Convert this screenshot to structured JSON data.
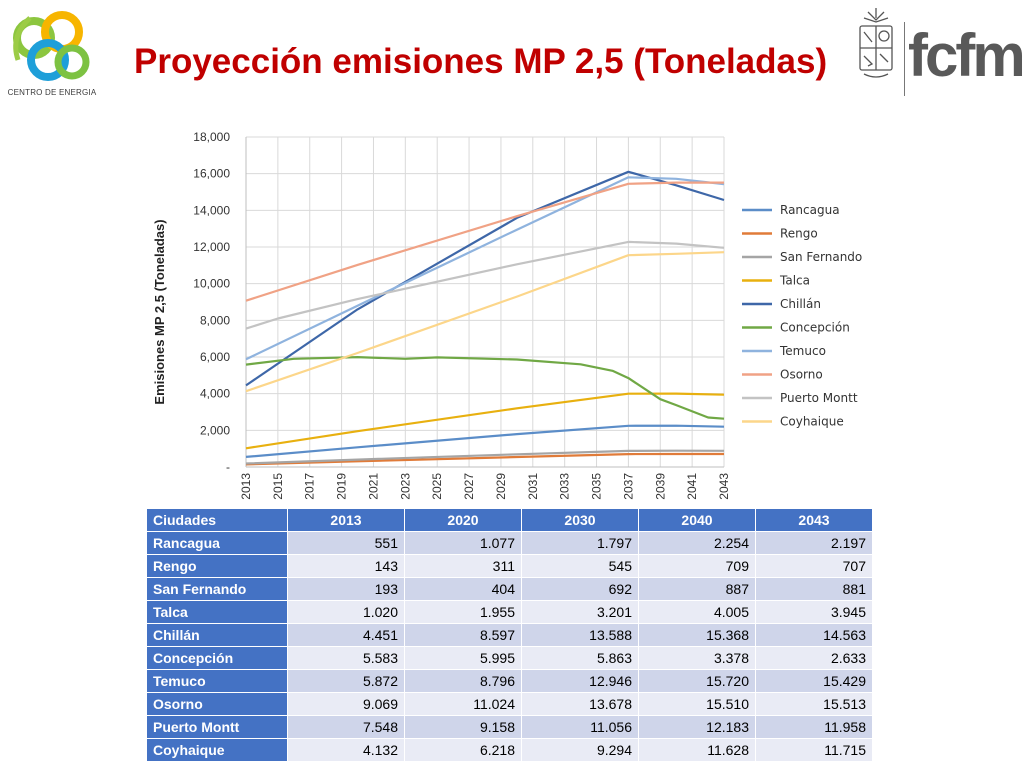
{
  "header": {
    "title": "Proyección emisiones MP 2,5 (Toneladas)",
    "left_logo_caption": "CENTRO DE ENERGIA",
    "right_logo_text": "fcfm"
  },
  "chart_data": {
    "type": "line",
    "title": "",
    "ylabel": "Emisiones MP 2,5 (Toneladas)",
    "xlabel": "",
    "ylim": [
      0,
      18000
    ],
    "grid": true,
    "legend_position": "right",
    "x_ticks": [
      "2013",
      "2015",
      "2017",
      "2019",
      "2021",
      "2023",
      "2025",
      "2027",
      "2029",
      "2031",
      "2033",
      "2035",
      "2037",
      "2039",
      "2041",
      "2043"
    ],
    "y_ticks": [
      {
        "value": 0,
        "label": "-"
      },
      {
        "value": 2000,
        "label": "2,000"
      },
      {
        "value": 4000,
        "label": "4,000"
      },
      {
        "value": 6000,
        "label": "6,000"
      },
      {
        "value": 8000,
        "label": "8,000"
      },
      {
        "value": 10000,
        "label": "10,000"
      },
      {
        "value": 12000,
        "label": "12,000"
      },
      {
        "value": 14000,
        "label": "14,000"
      },
      {
        "value": 16000,
        "label": "16,000"
      },
      {
        "value": 18000,
        "label": "18,000"
      }
    ],
    "series": [
      {
        "name": "Rancagua",
        "color": "#5b8dc8",
        "points": [
          [
            2013,
            551
          ],
          [
            2020,
            1077
          ],
          [
            2030,
            1797
          ],
          [
            2037,
            2250
          ],
          [
            2040,
            2254
          ],
          [
            2043,
            2197
          ]
        ]
      },
      {
        "name": "Rengo",
        "color": "#e07b39",
        "points": [
          [
            2013,
            143
          ],
          [
            2020,
            311
          ],
          [
            2030,
            545
          ],
          [
            2037,
            705
          ],
          [
            2040,
            709
          ],
          [
            2043,
            707
          ]
        ]
      },
      {
        "name": "San Fernando",
        "color": "#a5a5a5",
        "points": [
          [
            2013,
            193
          ],
          [
            2020,
            404
          ],
          [
            2030,
            692
          ],
          [
            2037,
            880
          ],
          [
            2040,
            887
          ],
          [
            2043,
            881
          ]
        ]
      },
      {
        "name": "Talca",
        "color": "#e8b00f",
        "points": [
          [
            2013,
            1020
          ],
          [
            2020,
            1955
          ],
          [
            2030,
            3201
          ],
          [
            2037,
            4000
          ],
          [
            2040,
            4005
          ],
          [
            2043,
            3945
          ]
        ]
      },
      {
        "name": "Chillán",
        "color": "#3e67a8",
        "points": [
          [
            2013,
            4451
          ],
          [
            2020,
            8597
          ],
          [
            2030,
            13588
          ],
          [
            2037,
            16100
          ],
          [
            2040,
            15368
          ],
          [
            2043,
            14563
          ]
        ]
      },
      {
        "name": "Concepción",
        "color": "#70a845",
        "points": [
          [
            2013,
            5583
          ],
          [
            2016,
            5900
          ],
          [
            2020,
            5995
          ],
          [
            2023,
            5900
          ],
          [
            2025,
            5980
          ],
          [
            2030,
            5863
          ],
          [
            2034,
            5600
          ],
          [
            2036,
            5250
          ],
          [
            2037,
            4850
          ],
          [
            2039,
            3700
          ],
          [
            2040,
            3378
          ],
          [
            2042,
            2700
          ],
          [
            2043,
            2633
          ]
        ]
      },
      {
        "name": "Temuco",
        "color": "#8fb3de",
        "points": [
          [
            2013,
            5872
          ],
          [
            2020,
            8796
          ],
          [
            2030,
            12946
          ],
          [
            2037,
            15800
          ],
          [
            2040,
            15720
          ],
          [
            2043,
            15429
          ]
        ]
      },
      {
        "name": "Osorno",
        "color": "#f0a285",
        "points": [
          [
            2013,
            9069
          ],
          [
            2020,
            11024
          ],
          [
            2030,
            13678
          ],
          [
            2037,
            15450
          ],
          [
            2040,
            15510
          ],
          [
            2043,
            15513
          ]
        ]
      },
      {
        "name": "Puerto Montt",
        "color": "#c3c3c3",
        "points": [
          [
            2013,
            7548
          ],
          [
            2015,
            8100
          ],
          [
            2020,
            9158
          ],
          [
            2030,
            11056
          ],
          [
            2037,
            12280
          ],
          [
            2040,
            12183
          ],
          [
            2043,
            11958
          ]
        ]
      },
      {
        "name": "Coyhaique",
        "color": "#fcd68a",
        "points": [
          [
            2013,
            4132
          ],
          [
            2020,
            6218
          ],
          [
            2030,
            9294
          ],
          [
            2037,
            11550
          ],
          [
            2040,
            11628
          ],
          [
            2043,
            11715
          ]
        ]
      }
    ]
  },
  "table": {
    "headers": [
      "Ciudades",
      "2013",
      "2020",
      "2030",
      "2040",
      "2043"
    ],
    "rows": [
      [
        "Rancagua",
        "551",
        "1.077",
        "1.797",
        "2.254",
        "2.197"
      ],
      [
        "Rengo",
        "143",
        "311",
        "545",
        "709",
        "707"
      ],
      [
        "San Fernando",
        "193",
        "404",
        "692",
        "887",
        "881"
      ],
      [
        "Talca",
        "1.020",
        "1.955",
        "3.201",
        "4.005",
        "3.945"
      ],
      [
        "Chillán",
        "4.451",
        "8.597",
        "13.588",
        "15.368",
        "14.563"
      ],
      [
        "Concepción",
        "5.583",
        "5.995",
        "5.863",
        "3.378",
        "2.633"
      ],
      [
        "Temuco",
        "5.872",
        "8.796",
        "12.946",
        "15.720",
        "15.429"
      ],
      [
        "Osorno",
        "9.069",
        "11.024",
        "13.678",
        "15.510",
        "15.513"
      ],
      [
        "Puerto Montt",
        "7.548",
        "9.158",
        "11.056",
        "12.183",
        "11.958"
      ],
      [
        "Coyhaique",
        "4.132",
        "6.218",
        "9.294",
        "11.628",
        "11.715"
      ]
    ]
  }
}
